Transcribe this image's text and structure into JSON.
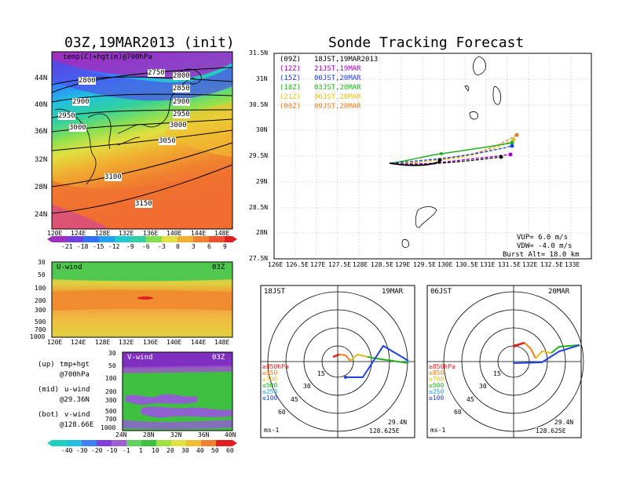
{
  "left_title": "03Z,19MAR2013 (init)",
  "right_title": "Sonde Tracking Forecast",
  "top_map": {
    "label": "temp(C)+hgt(m)@700hPa",
    "lat_ticks": [
      "44N",
      "40N",
      "36N",
      "32N",
      "28N",
      "24N"
    ],
    "lon_ticks": [
      "120E",
      "124E",
      "128E",
      "132E",
      "136E",
      "140E",
      "144E",
      "148E"
    ],
    "contours": [
      "2750",
      "2800",
      "2800",
      "2850",
      "2900",
      "2900",
      "2950",
      "2950",
      "3000",
      "3000",
      "3050",
      "3100",
      "3150"
    ],
    "colorbar_labels": [
      "-21",
      "-18",
      "-15",
      "-12",
      "-9",
      "-6",
      "-3",
      "0",
      "3",
      "6",
      "9"
    ]
  },
  "u_panel": {
    "label": "U-wind",
    "time": "03Z",
    "p_ticks": [
      "30",
      "50",
      "100",
      "200",
      "300",
      "500",
      "700",
      "1000"
    ],
    "lon_ticks": [
      "120E",
      "124E",
      "128E",
      "132E",
      "136E",
      "140E",
      "144E",
      "148E"
    ]
  },
  "v_panel": {
    "label": "V-wind",
    "time": "03Z",
    "p_ticks": [
      "30",
      "50",
      "100",
      "200",
      "300",
      "500",
      "700",
      "1000"
    ],
    "lat_ticks": [
      "24N",
      "28N",
      "32N",
      "36N",
      "40N"
    ]
  },
  "legend_notes": [
    {
      "key": "(up)",
      "line1": "tmp+hgt",
      "line2": "@700hPa"
    },
    {
      "key": "(mid)",
      "line1": "u-wind",
      "line2": "@29.36N"
    },
    {
      "key": "(bot)",
      "line1": "v-wind",
      "line2": "@128.66E"
    }
  ],
  "wind_colorbar_labels": [
    "-40",
    "-30",
    "-20",
    "-10",
    "-1",
    "1",
    "10",
    "20",
    "30",
    "40",
    "50",
    "60"
  ],
  "track": {
    "legend": [
      {
        "code": "(09Z)",
        "time": "18JST,19MAR2013",
        "color": "#000000"
      },
      {
        "code": "(12Z)",
        "time": "21JST,19MAR",
        "color": "#a000c0"
      },
      {
        "code": "(15Z)",
        "time": "00JST,20MAR",
        "color": "#2040e0"
      },
      {
        "code": "(18Z)",
        "time": "03JST,20MAR",
        "color": "#20b020"
      },
      {
        "code": "(21Z)",
        "time": "06JST,20MAR",
        "color": "#e0c020"
      },
      {
        "code": "(00Z)",
        "time": "09JST,20MAR",
        "color": "#e08020"
      }
    ],
    "lat_ticks": [
      "31.5N",
      "31N",
      "30.5N",
      "30N",
      "29.5N",
      "29N",
      "28.5N",
      "28N",
      "27.5N"
    ],
    "lon_ticks": [
      "126E",
      "126.5E",
      "127E",
      "127.5E",
      "128E",
      "128.5E",
      "129E",
      "129.5E",
      "130E",
      "130.5E",
      "131E",
      "131.5E",
      "132E",
      "132.5E",
      "133E"
    ],
    "vup": "VUP=  6.0 m/s",
    "vdw": "VDW= -4.0 m/s",
    "burst": "Burst Alt= 18.0 km"
  },
  "hodo_left": {
    "time": "18JST",
    "date": "19MAR",
    "lat": "29.4N",
    "lon": "128.625E",
    "unit": "ms-1",
    "rings": [
      "15",
      "30",
      "45",
      "60"
    ]
  },
  "hodo_right": {
    "time": "06JST",
    "date": "20MAR",
    "lat": "29.4N",
    "lon": "128.625E",
    "unit": "ms-1",
    "rings": [
      "15",
      "30",
      "45",
      "60"
    ]
  },
  "hodo_legend": [
    {
      "label": "≥850hPa",
      "color": "#e02020"
    },
    {
      "label": "≤850",
      "color": "#f08020"
    },
    {
      "label": "≤700",
      "color": "#e0c020"
    },
    {
      "label": "≤500",
      "color": "#20b020"
    },
    {
      "label": "≤250",
      "color": "#20a0e0"
    },
    {
      "label": "≤100",
      "color": "#2040e0"
    }
  ]
}
